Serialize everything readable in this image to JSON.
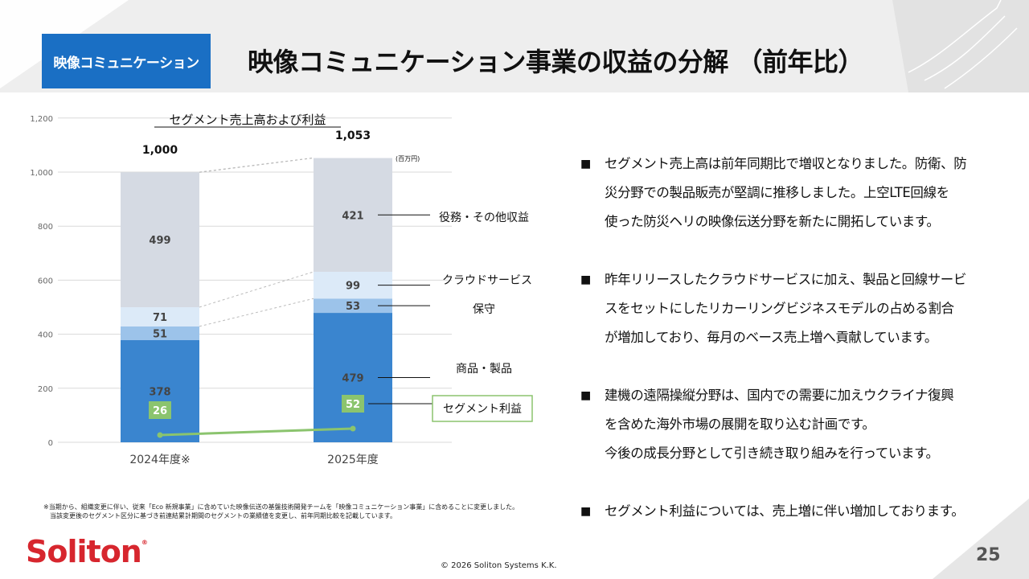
{
  "header": {
    "badge": "映像コミュニケーション",
    "title": "映像コミュニケーション事業の収益の分解 （前年比）"
  },
  "chart_data": {
    "type": "bar",
    "stacked": true,
    "title": "セグメント売上高および利益",
    "unit_note": "(百万円)",
    "categories": [
      "2024年度※",
      "2025年度"
    ],
    "totals": [
      1000,
      1053
    ],
    "total_labels": [
      "1,000",
      "1,053"
    ],
    "series": [
      {
        "name": "商品・製品",
        "values": [
          378,
          479
        ],
        "color": "#3a85cf"
      },
      {
        "name": "保守",
        "values": [
          51,
          53
        ],
        "color": "#9cc3ea"
      },
      {
        "name": "クラウドサービス",
        "values": [
          71,
          99
        ],
        "color": "#dceaf8"
      },
      {
        "name": "役務・その他収益",
        "values": [
          499,
          421
        ],
        "color": "#d5dae3"
      }
    ],
    "profit": {
      "name": "セグメント利益",
      "values": [
        26,
        52
      ],
      "color": "#8bc46e"
    },
    "y_ticks": [
      0,
      200,
      400,
      600,
      800,
      1000,
      1200
    ],
    "y_tick_labels": [
      "0",
      "200",
      "400",
      "600",
      "800",
      "1,000",
      "1,200"
    ],
    "ylim": [
      0,
      1200
    ]
  },
  "bullets": [
    {
      "lines": [
        "セグメント売上高は前年同期比で増収となりました。防衛、防",
        "災分野での製品販売が堅調に推移しました。上空LTE回線を",
        "使った防災ヘリの映像伝送分野を新たに開拓しています。"
      ]
    },
    {
      "lines": [
        "昨年リリースしたクラウドサービスに加え、製品と回線サービ",
        "スをセットにしたリカーリングビジネスモデルの占める割合",
        "が増加しており、毎月のベース売上増へ貢献しています。"
      ]
    },
    {
      "lines": [
        "建機の遠隔操縦分野は、国内での需要に加えウクライナ復興",
        "を含めた海外市場の展開を取り込む計画です。",
        "今後の成長分野として引き続き取り組みを行っています。"
      ]
    },
    {
      "lines": [
        "セグメント利益については、売上増に伴い増加しております。"
      ]
    }
  ],
  "bullet_mark": "■",
  "footnote": {
    "line1": "※当期から、組織変更に伴い、従来「Eco 新規事業」に含めていた映像伝送の基盤技術開発チームを「映像コミュニケーション事業」に含めることに変更しました。",
    "line2": "当該変更後のセグメント区分に基づき前連結累計期間のセグメントの業績値を変更し、前年同期比較を記載しています。"
  },
  "footer": {
    "logo": "Soliton",
    "logo_mark": "®",
    "copyright": "© 2026 Soliton Systems K.K.",
    "page": "25"
  }
}
